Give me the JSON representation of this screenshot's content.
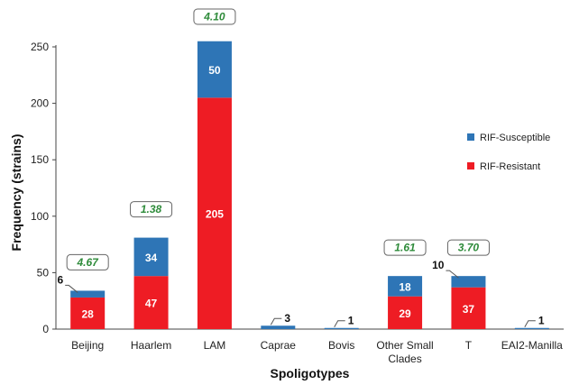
{
  "chart_data": {
    "type": "bar",
    "stacked": true,
    "xlabel": "Spoligotypes",
    "ylabel": "Frequency (strains)",
    "ylim": [
      0,
      250
    ],
    "yticks": [
      0,
      50,
      100,
      150,
      200,
      250
    ],
    "grid": false,
    "legend_position": "right",
    "categories": [
      "Beijing",
      "Haarlem",
      "LAM",
      "Caprae",
      "Bovis",
      "Other Small\nClades",
      "T",
      "EAI2-Manilla"
    ],
    "series": [
      {
        "name": "RIF-Resistant",
        "color": "#ee1c24",
        "values": [
          28,
          47,
          205,
          0,
          0,
          29,
          37,
          0
        ]
      },
      {
        "name": "RIF-Susceptible",
        "color": "#2e75b6",
        "values": [
          6,
          34,
          50,
          3,
          1,
          18,
          10,
          1
        ]
      }
    ],
    "legend": [
      "RIF-Susceptible",
      "RIF-Resistant"
    ],
    "ratios": [
      "4.67",
      "1.38",
      "4.10",
      "",
      "",
      "1.61",
      "3.70",
      ""
    ],
    "ratio_color": "#2e8b3a"
  }
}
